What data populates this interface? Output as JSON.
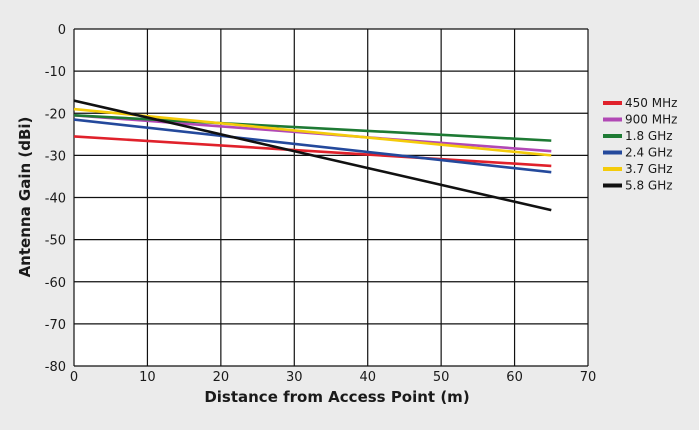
{
  "chart_data": {
    "type": "line",
    "title": "",
    "xlabel": "Distance from Access Point (m)",
    "ylabel": "Antenna Gain (dBi)",
    "xlim": [
      0,
      70
    ],
    "ylim": [
      -80,
      0
    ],
    "xticks": [
      0,
      10,
      20,
      30,
      40,
      50,
      60,
      70
    ],
    "yticks": [
      0,
      -10,
      -20,
      -30,
      -40,
      -50,
      -60,
      -70,
      -80
    ],
    "grid": true,
    "legend_position": "right",
    "series": [
      {
        "name": "450 MHz",
        "color": "#e0212b",
        "x": [
          0,
          65
        ],
        "y": [
          -25.5,
          -32.5
        ]
      },
      {
        "name": "900 MHz",
        "color": "#b148b5",
        "x": [
          0,
          65
        ],
        "y": [
          -20.5,
          -29.0
        ]
      },
      {
        "name": "1.8 GHz",
        "color": "#1e7a34",
        "x": [
          0,
          65
        ],
        "y": [
          -20.5,
          -26.5
        ]
      },
      {
        "name": "2.4 GHz",
        "color": "#24499c",
        "x": [
          0,
          65
        ],
        "y": [
          -21.5,
          -34.0
        ]
      },
      {
        "name": "3.7 GHz",
        "color": "#f4cb0a",
        "x": [
          0,
          65
        ],
        "y": [
          -19.0,
          -30.0
        ]
      },
      {
        "name": "5.8 GHz",
        "color": "#111111",
        "x": [
          0,
          65
        ],
        "y": [
          -17.0,
          -43.0
        ]
      }
    ]
  }
}
